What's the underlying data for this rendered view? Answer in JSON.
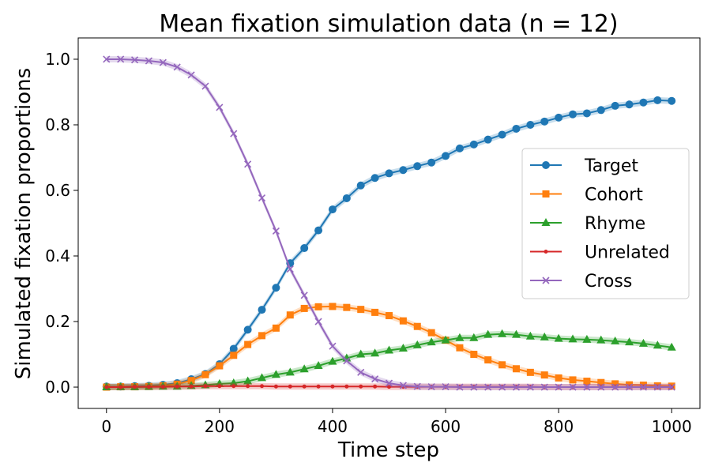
{
  "chart_data": {
    "type": "line",
    "title": "Mean fixation simulation data (n = 12)",
    "xlabel": "Time step",
    "ylabel": "Simulated fixation proportions",
    "xlim": [
      -50,
      1050
    ],
    "ylim": [
      -0.065,
      1.065
    ],
    "x_ticks": [
      "0",
      "200",
      "400",
      "600",
      "800",
      "1000"
    ],
    "y_ticks": [
      "0.0",
      "0.2",
      "0.4",
      "0.6",
      "0.8",
      "1.0"
    ],
    "grid": false,
    "legend_position": "center-right",
    "x": [
      0,
      25,
      50,
      75,
      100,
      125,
      150,
      175,
      200,
      225,
      250,
      275,
      300,
      325,
      350,
      375,
      400,
      425,
      450,
      475,
      500,
      525,
      550,
      575,
      600,
      625,
      650,
      675,
      700,
      725,
      750,
      775,
      800,
      825,
      850,
      875,
      900,
      925,
      950,
      975,
      1000
    ],
    "series": [
      {
        "name": "Target",
        "color": "#1f77b4",
        "marker": "circle",
        "values": [
          0.002,
          0.002,
          0.003,
          0.004,
          0.007,
          0.012,
          0.024,
          0.04,
          0.07,
          0.117,
          0.175,
          0.236,
          0.303,
          0.378,
          0.424,
          0.478,
          0.542,
          0.576,
          0.615,
          0.638,
          0.652,
          0.662,
          0.674,
          0.685,
          0.705,
          0.728,
          0.74,
          0.755,
          0.77,
          0.788,
          0.8,
          0.81,
          0.822,
          0.832,
          0.835,
          0.845,
          0.858,
          0.862,
          0.868,
          0.875,
          0.873
        ]
      },
      {
        "name": "Cohort",
        "color": "#ff7f0e",
        "marker": "square",
        "values": [
          0.0,
          0.001,
          0.001,
          0.002,
          0.004,
          0.009,
          0.02,
          0.038,
          0.065,
          0.097,
          0.13,
          0.157,
          0.18,
          0.22,
          0.24,
          0.245,
          0.246,
          0.243,
          0.237,
          0.228,
          0.218,
          0.202,
          0.185,
          0.166,
          0.143,
          0.12,
          0.1,
          0.083,
          0.068,
          0.056,
          0.045,
          0.037,
          0.028,
          0.022,
          0.018,
          0.014,
          0.01,
          0.007,
          0.006,
          0.004,
          0.003
        ]
      },
      {
        "name": "Rhyme",
        "color": "#2ca02c",
        "marker": "triangle",
        "values": [
          0.0,
          0.0,
          0.0,
          0.001,
          0.002,
          0.002,
          0.004,
          0.006,
          0.01,
          0.012,
          0.018,
          0.028,
          0.038,
          0.045,
          0.055,
          0.065,
          0.078,
          0.088,
          0.1,
          0.103,
          0.112,
          0.118,
          0.128,
          0.137,
          0.143,
          0.15,
          0.15,
          0.16,
          0.162,
          0.16,
          0.155,
          0.152,
          0.148,
          0.146,
          0.145,
          0.143,
          0.14,
          0.137,
          0.133,
          0.127,
          0.121
        ]
      },
      {
        "name": "Unrelated",
        "color": "#d62728",
        "marker": "dot",
        "values": [
          0.0,
          0.0,
          0.001,
          0.001,
          0.001,
          0.002,
          0.002,
          0.003,
          0.003,
          0.003,
          0.003,
          0.003,
          0.002,
          0.002,
          0.002,
          0.002,
          0.002,
          0.002,
          0.002,
          0.002,
          0.001,
          0.001,
          0.001,
          0.001,
          0.001,
          0.001,
          0.001,
          0.001,
          0.001,
          0.001,
          0.001,
          0.0,
          0.0,
          0.0,
          0.0,
          0.0,
          0.0,
          0.0,
          0.0,
          0.0,
          0.0
        ]
      },
      {
        "name": "Cross",
        "color": "#9467bd",
        "marker": "x",
        "values": [
          1.0,
          1.0,
          0.998,
          0.995,
          0.99,
          0.976,
          0.952,
          0.918,
          0.853,
          0.773,
          0.68,
          0.577,
          0.476,
          0.36,
          0.28,
          0.2,
          0.125,
          0.08,
          0.045,
          0.025,
          0.012,
          0.005,
          0.002,
          0.001,
          0.001,
          0.0,
          0.0,
          0.0,
          0.0,
          0.0,
          0.0,
          0.0,
          0.0,
          0.0,
          0.0,
          0.0,
          0.0,
          0.0,
          0.0,
          0.0,
          0.0
        ]
      }
    ]
  }
}
